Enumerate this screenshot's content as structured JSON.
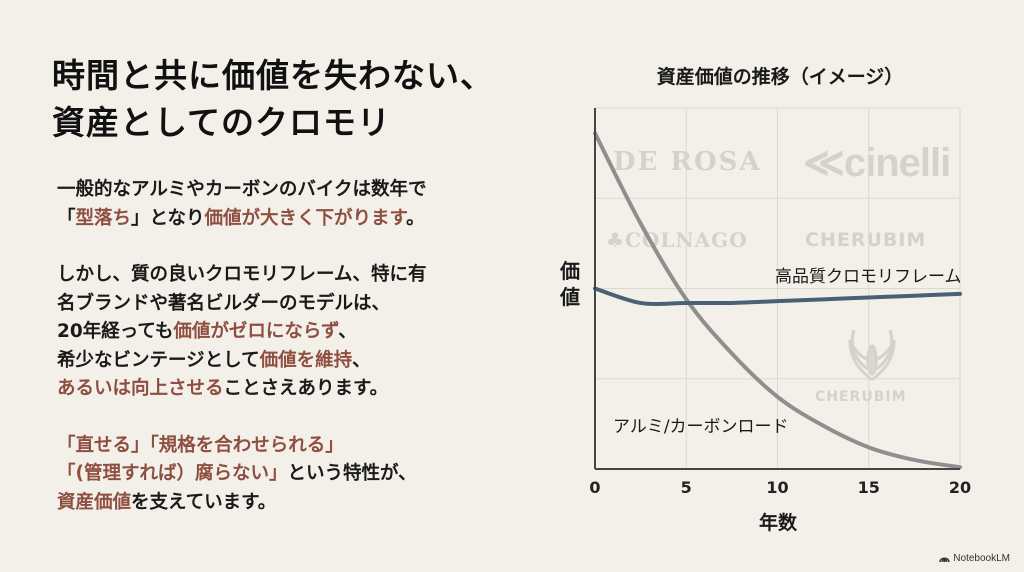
{
  "slide": {
    "title_lines": [
      "時間と共に価値を失わない、",
      "資産としてのクロモリ"
    ],
    "paragraphs": [
      {
        "lines": [
          [
            {
              "t": "一般的なアルミやカーボンのバイクは数年で",
              "hl": false
            }
          ],
          [
            {
              "t": "「",
              "hl": false
            },
            {
              "t": "型落ち",
              "hl": true
            },
            {
              "t": "」となり",
              "hl": false
            },
            {
              "t": "価値が大きく下がります",
              "hl": true
            },
            {
              "t": "。",
              "hl": false
            }
          ]
        ]
      },
      {
        "lines": [
          [
            {
              "t": "しかし、質の良いクロモリフレーム、特に有",
              "hl": false
            }
          ],
          [
            {
              "t": "名ブランドや著名ビルダーのモデルは、",
              "hl": false
            }
          ],
          [
            {
              "t": "20年経っても",
              "hl": false
            },
            {
              "t": "価値がゼロにならず",
              "hl": true
            },
            {
              "t": "、",
              "hl": false
            }
          ],
          [
            {
              "t": "希少なビンテージとして",
              "hl": false
            },
            {
              "t": "価値を維持",
              "hl": true
            },
            {
              "t": "、",
              "hl": false
            }
          ],
          [
            {
              "t": "あるいは向上させる",
              "hl": true
            },
            {
              "t": "ことさえあります。",
              "hl": false
            }
          ]
        ]
      },
      {
        "lines": [
          [
            {
              "t": "「直せる」「規格を合わせられる」",
              "hl": true
            }
          ],
          [
            {
              "t": "「(管理すれば）腐らない」",
              "hl": true
            },
            {
              "t": "という特性が、",
              "hl": false
            }
          ],
          [
            {
              "t": "資産価値",
              "hl": true
            },
            {
              "t": "を支えています。",
              "hl": false
            }
          ]
        ]
      }
    ],
    "highlight_color": "#8e4f40"
  },
  "watermarks": [
    "DE ROSA",
    "cinelli",
    "COLNAGO",
    "CHERUBIM",
    "CHERUBIM"
  ],
  "branding": {
    "label": "NotebookLM",
    "icon": "notebooklm-logo-icon"
  },
  "chart_data": {
    "type": "line",
    "title": "資産価値の推移（イメージ）",
    "xlabel": "年数",
    "ylabel": "価値",
    "x": [
      0,
      2.5,
      5,
      7.5,
      10,
      12.5,
      15,
      17.5,
      20
    ],
    "xticks": [
      0,
      5,
      10,
      15,
      20
    ],
    "xlim": [
      0,
      20
    ],
    "ylim": [
      0,
      100
    ],
    "grid": true,
    "series": [
      {
        "name": "高品質クロモリフレーム",
        "color": "#4a6076",
        "values": [
          50,
          46,
          46,
          46,
          46.5,
          47,
          47.5,
          48,
          48.5
        ]
      },
      {
        "name": "アルミ/カーボンロード",
        "color": "#8f8f8f",
        "values": [
          93,
          68,
          47,
          32,
          20,
          12,
          6,
          2.5,
          0.5
        ]
      }
    ],
    "annotations": [
      "高品質クロモリフレーム",
      "アルミ/カーボンロード"
    ]
  }
}
